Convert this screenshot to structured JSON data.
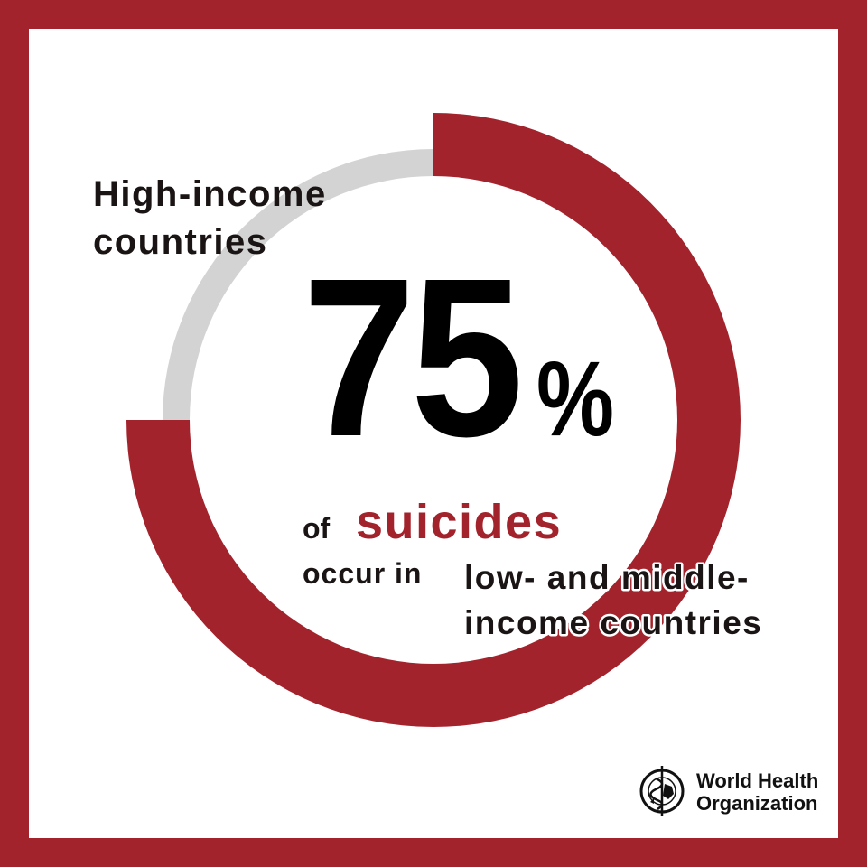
{
  "chart_data": {
    "type": "pie",
    "style": "donut",
    "categories": [
      "low- and middle-income countries",
      "High-income countries"
    ],
    "values": [
      75,
      25
    ],
    "unit": "%",
    "colors": [
      "#a3232c",
      "#d3d3d3"
    ]
  },
  "labels": {
    "high_income_line1": "High-income",
    "high_income_line2": "countries",
    "big_number": "75",
    "percent_sign": "%",
    "of": "of",
    "suicides": "suicides",
    "occur_in": "occur in",
    "lmic_line1": "low- and middle-",
    "lmic_line2": "income countries"
  },
  "logo": {
    "line1": "World Health",
    "line2": "Organization",
    "icon": "who-emblem-icon"
  },
  "colors": {
    "frame": "#a3232c",
    "accent_text": "#a3232c",
    "ring_gray": "#d3d3d3",
    "text": "#1a1414"
  }
}
